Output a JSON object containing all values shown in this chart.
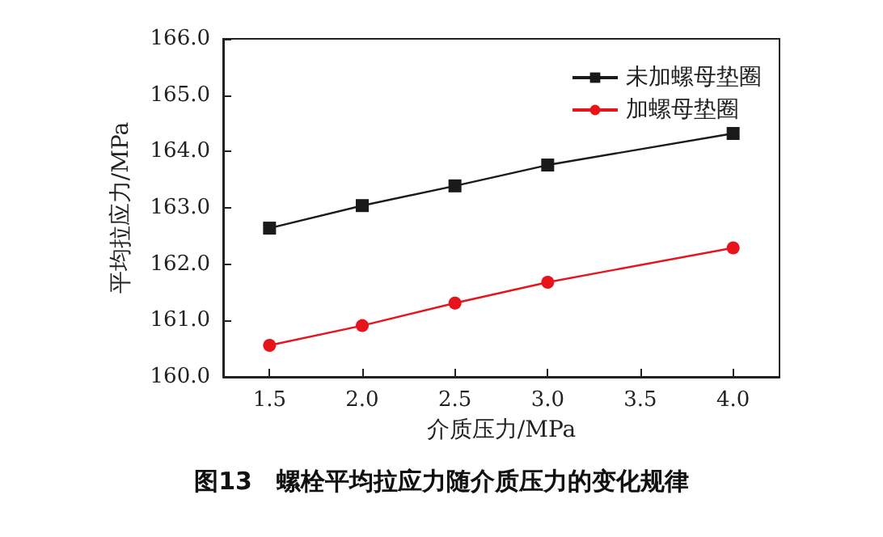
{
  "chart_data": {
    "type": "line",
    "xlabel": "介质压力/MPa",
    "ylabel": "平均拉应力/MPa",
    "annotations": [
      "图13　螺栓平均拉应力随介质压力的变化规律"
    ],
    "x": [
      1.5,
      2.0,
      2.5,
      3.0,
      4.0
    ],
    "series": [
      {
        "name": "未加螺母垫圈",
        "color": "#1a1a1a",
        "marker": "square",
        "values": [
          162.64,
          163.04,
          163.39,
          163.76,
          164.32
        ]
      },
      {
        "name": "加螺母垫圈",
        "color": "#e8141c",
        "marker": "circle",
        "values": [
          160.56,
          160.91,
          161.31,
          161.68,
          162.29
        ]
      }
    ],
    "xlim": [
      1.25,
      4.25
    ],
    "xticks": [
      {
        "value": 1.5,
        "label": "1.5"
      },
      {
        "value": 2,
        "label": "2.0"
      },
      {
        "value": 2.5,
        "label": "2.5"
      },
      {
        "value": 3,
        "label": "3.0"
      },
      {
        "value": 3.5,
        "label": "3.5"
      },
      {
        "value": 4,
        "label": "4.0"
      }
    ],
    "ylim": [
      160,
      166
    ],
    "yticks": [
      {
        "value": 160,
        "label": "160.0"
      },
      {
        "value": 161,
        "label": "161.0"
      },
      {
        "value": 162,
        "label": "162.0"
      },
      {
        "value": 163,
        "label": "163.0"
      },
      {
        "value": 164,
        "label": "164.0"
      },
      {
        "value": 165,
        "label": "165.0"
      },
      {
        "value": 166,
        "label": "166.0"
      }
    ],
    "grid": false,
    "legend": "top right",
    "line_style": "solid"
  }
}
